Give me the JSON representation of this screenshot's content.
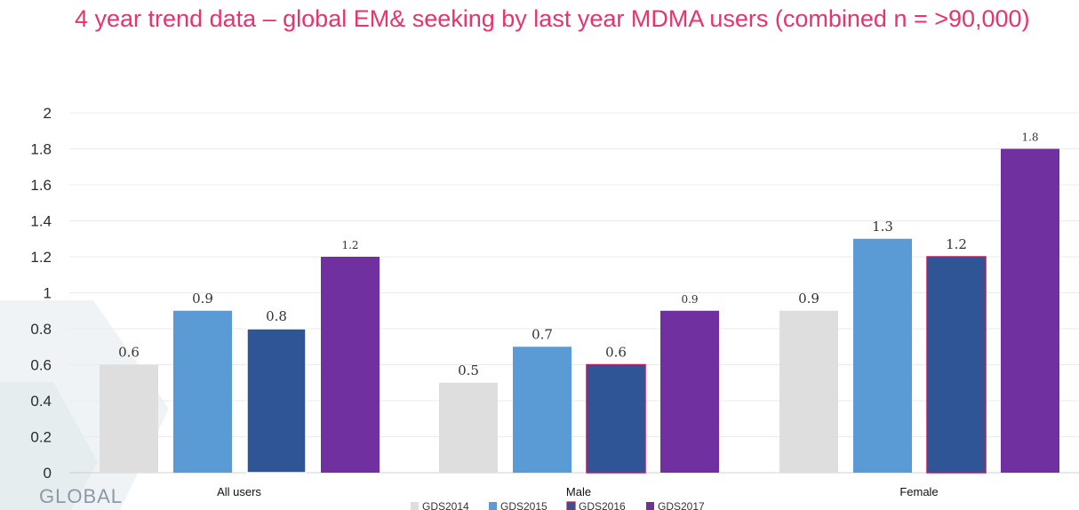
{
  "slide": {
    "title": "4 year trend data – global EM& seeking by last year MDMA users (combined n = >90,000)",
    "logo_text": "GLOBAL"
  },
  "colors": {
    "title": "#e8336d",
    "GDS2014": "#dedede",
    "GDS2015": "#5b9bd5",
    "GDS2016": "#2f5597",
    "GDS2016_border": "#c0185e",
    "GDS2017": "#7030a0"
  },
  "chart_data": {
    "type": "bar",
    "title": "",
    "xlabel": "",
    "ylabel": "",
    "categories": [
      "All users",
      "Male",
      "Female"
    ],
    "series": [
      {
        "name": "GDS2014",
        "values": [
          0.6,
          0.5,
          0.9
        ],
        "labels": [
          "0.6",
          "0.5",
          "0.9"
        ]
      },
      {
        "name": "GDS2015",
        "values": [
          0.9,
          0.7,
          1.3
        ],
        "labels": [
          "0.9",
          "0.7",
          "1.3"
        ]
      },
      {
        "name": "GDS2016",
        "values": [
          0.8,
          0.6,
          1.2
        ],
        "labels": [
          "0.8",
          "0.6",
          "1.2"
        ]
      },
      {
        "name": "GDS2017",
        "values": [
          1.2,
          0.9,
          1.8
        ],
        "labels": [
          "1.2",
          "0.9",
          "1.8"
        ]
      }
    ],
    "ylim": [
      0,
      2
    ],
    "yticks": [
      "0",
      "0.2",
      "0.4",
      "0.6",
      "0.8",
      "1",
      "1.2",
      "1.4",
      "1.6",
      "1.8",
      "2"
    ],
    "grid": true,
    "legend_position": "bottom"
  }
}
